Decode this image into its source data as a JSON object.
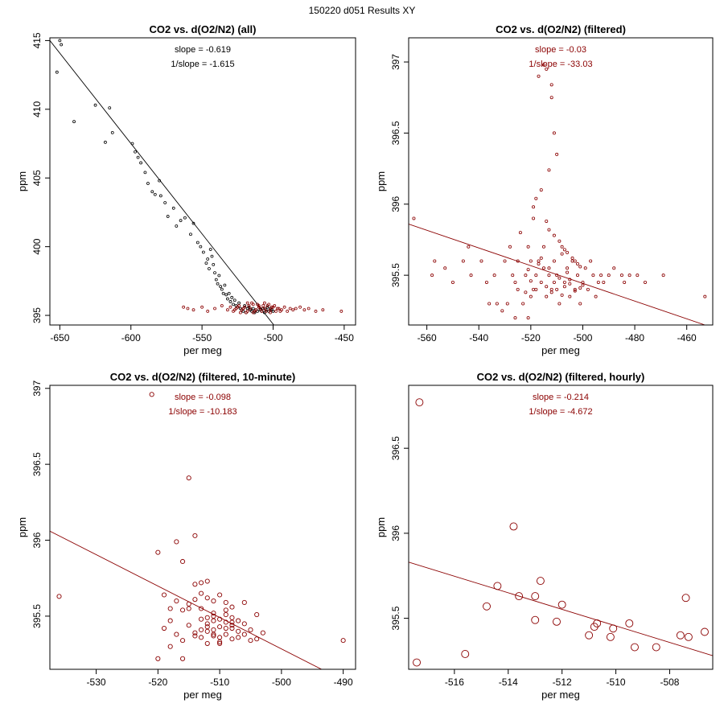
{
  "figure_title": "150220   d051   Results XY",
  "colors": {
    "all": "#000000",
    "filtered": "#8b0000"
  },
  "chart_data": [
    {
      "type": "scatter",
      "title": "CO2 vs. d(O2/N2) (all)",
      "xlabel": "per meg",
      "ylabel": "ppm",
      "xlim": [
        -657,
        -442
      ],
      "ylim": [
        394.3,
        415.2
      ],
      "xticks": [
        -650,
        -600,
        -550,
        -500,
        -450
      ],
      "yticks": [
        395,
        400,
        405,
        410,
        415
      ],
      "annotations": [
        "slope = -0.619",
        "1/slope = -1.615"
      ],
      "annotation_color": "#000000",
      "marker_size": 1.5,
      "fit_line": {
        "x": [
          -657,
          -499.5
        ],
        "y": [
          415.0,
          394.3
        ],
        "color": "#000000"
      },
      "series": [
        {
          "name": "all",
          "color": "#000000",
          "x": [
            -650,
            -649,
            -652,
            -640,
            -625,
            -618,
            -615,
            -613,
            -599,
            -597,
            -595,
            -593,
            -590,
            -588,
            -585,
            -583,
            -580,
            -579,
            -576,
            -574,
            -570,
            -568,
            -565,
            -562,
            -558,
            -556,
            -553,
            -551,
            -549,
            -547,
            -546,
            -545,
            -544,
            -543,
            -542,
            -541,
            -540,
            -539,
            -538,
            -537,
            -536,
            -535,
            -534,
            -533,
            -532,
            -531,
            -530,
            -529,
            -528,
            -527,
            -526,
            -525,
            -524,
            -523,
            -522,
            -521,
            -520,
            -519,
            -518,
            -517,
            -516,
            -515,
            -514,
            -513,
            -512,
            -511,
            -510,
            -509,
            -508,
            -507,
            -506,
            -505,
            -504,
            -503,
            -502,
            -501,
            -500
          ],
          "y": [
            415.0,
            414.7,
            412.7,
            409.1,
            410.3,
            407.6,
            410.1,
            408.3,
            407.5,
            406.9,
            406.5,
            406.1,
            405.4,
            404.6,
            404.0,
            403.8,
            404.8,
            403.7,
            403.2,
            402.2,
            402.8,
            401.5,
            401.9,
            402.1,
            400.9,
            401.7,
            400.3,
            400.0,
            399.6,
            398.8,
            399.1,
            398.4,
            399.8,
            399.3,
            398.7,
            398.1,
            397.6,
            397.3,
            397.9,
            397.1,
            396.9,
            396.6,
            397.2,
            396.5,
            396.2,
            396.6,
            396.0,
            396.3,
            395.8,
            396.1,
            395.7,
            395.6,
            395.9,
            395.5,
            395.4,
            395.3,
            395.7,
            395.2,
            395.5,
            395.6,
            395.4,
            395.3,
            395.5,
            395.2,
            395.4,
            395.3,
            395.6,
            395.4,
            395.3,
            395.5,
            395.2,
            395.4,
            395.6,
            395.3,
            395.5,
            395.4,
            395.3
          ]
        },
        {
          "name": "filtered",
          "color": "#8b0000",
          "x": [
            -563,
            -560,
            -556,
            -550,
            -546,
            -541,
            -536,
            -532,
            -530,
            -528,
            -526,
            -524,
            -522,
            -520,
            -518,
            -516,
            -514,
            -512,
            -510,
            -508,
            -506,
            -504,
            -502,
            -500,
            -498,
            -496,
            -494,
            -492,
            -490,
            -488,
            -486,
            -484,
            -481,
            -478,
            -475,
            -470,
            -465,
            -452,
            -519,
            -517,
            -515,
            -513,
            -511,
            -509,
            -507,
            -505,
            -503,
            -501,
            -521,
            -523,
            -525,
            -527,
            -518,
            -514,
            -510,
            -506,
            -502,
            -499,
            -497,
            -495
          ],
          "y": [
            395.6,
            395.5,
            395.4,
            395.6,
            395.3,
            395.5,
            395.7,
            395.4,
            395.6,
            395.3,
            395.5,
            395.7,
            395.4,
            395.6,
            395.3,
            395.5,
            395.8,
            395.4,
            395.6,
            395.3,
            395.5,
            395.7,
            395.4,
            395.6,
            395.3,
            395.5,
            395.4,
            395.6,
            395.3,
            395.5,
            395.4,
            395.5,
            395.6,
            395.4,
            395.5,
            395.3,
            395.4,
            395.3,
            395.2,
            395.7,
            395.9,
            395.3,
            395.8,
            395.5,
            395.7,
            395.3,
            395.8,
            395.6,
            395.5,
            395.2,
            395.6,
            395.4,
            395.9,
            395.2,
            395.7,
            395.9,
            395.2,
            395.7,
            395.5,
            395.3
          ]
        }
      ]
    },
    {
      "type": "scatter",
      "title": "CO2 vs. d(O2/N2) (filtered)",
      "xlabel": "per meg",
      "ylabel": "ppm",
      "xlim": [
        -567,
        -450
      ],
      "ylim": [
        395.15,
        397.17
      ],
      "xticks": [
        -560,
        -540,
        -520,
        -500,
        -480,
        -460
      ],
      "yticks": [
        395.5,
        396.0,
        396.5,
        397.0
      ],
      "annotations": [
        "slope = -0.03",
        "1/slope = -33.03"
      ],
      "annotation_color": "#8b0000",
      "marker_size": 1.6,
      "fit_line": {
        "x": [
          -567,
          -453
        ],
        "y": [
          395.86,
          395.15
        ],
        "color": "#8b0000"
      },
      "series": [
        {
          "name": "filtered",
          "color": "#8b0000",
          "x": [
            -565,
            -558,
            -557,
            -553,
            -550,
            -546,
            -544,
            -543,
            -539,
            -537,
            -536,
            -534,
            -533,
            -531,
            -530,
            -529,
            -528,
            -527,
            -526,
            -526,
            -525,
            -525,
            -524,
            -523,
            -522,
            -521,
            -521,
            -520,
            -520,
            -519,
            -518,
            -517,
            -516,
            -515,
            -514,
            -513,
            -512,
            -511,
            -510,
            -509,
            -508,
            -507,
            -506,
            -505,
            -504,
            -503,
            -502,
            -501,
            -500,
            -499,
            -498,
            -497,
            -496,
            -495,
            -494,
            -493,
            -492,
            -490,
            -488,
            -485,
            -484,
            -482,
            -479,
            -476,
            -469,
            -453,
            -517,
            -515,
            -514,
            -512,
            -512,
            -511,
            -510,
            -513,
            -516,
            -518,
            -519,
            -514,
            -513,
            -511,
            -509,
            -508,
            -507,
            -506,
            -504,
            -503,
            -502,
            -501,
            -511,
            -512,
            -513,
            -514,
            -515,
            -510,
            -509,
            -508,
            -506,
            -505,
            -516,
            -517,
            -518,
            -519,
            -520,
            -521,
            -522,
            -507,
            -505,
            -503,
            -501,
            -500
          ],
          "y": [
            395.9,
            395.5,
            395.6,
            395.55,
            395.45,
            395.6,
            395.7,
            395.5,
            395.6,
            395.45,
            395.3,
            395.5,
            395.3,
            395.25,
            395.6,
            395.3,
            395.7,
            395.5,
            395.2,
            395.45,
            395.6,
            395.4,
            395.8,
            395.3,
            395.5,
            395.7,
            395.2,
            395.6,
            395.35,
            395.9,
            395.4,
            395.6,
            395.45,
            395.7,
            395.35,
            395.55,
            395.4,
            395.6,
            395.5,
            395.3,
            395.65,
            395.45,
            395.55,
            395.35,
            395.6,
            395.4,
            395.5,
            395.3,
            395.45,
            395.55,
            395.4,
            395.6,
            395.5,
            395.35,
            395.45,
            395.5,
            395.45,
            395.5,
            395.55,
            395.5,
            395.45,
            395.5,
            395.5,
            395.45,
            395.5,
            395.35,
            396.9,
            396.98,
            396.95,
            396.84,
            396.75,
            396.5,
            396.35,
            396.24,
            396.1,
            396.04,
            395.98,
            395.88,
            395.82,
            395.78,
            395.74,
            395.7,
            395.68,
            395.66,
            395.62,
            395.6,
            395.58,
            395.56,
            395.45,
            395.38,
            395.5,
            395.42,
            395.55,
            395.4,
            395.48,
            395.36,
            395.52,
            395.44,
            395.62,
            395.58,
            395.5,
            395.4,
            395.46,
            395.54,
            395.38,
            395.42,
            395.47,
            395.39,
            395.41,
            395.43
          ]
        }
      ]
    },
    {
      "type": "scatter",
      "title": "CO2 vs. d(O2/N2) (filtered, 10-minute)",
      "xlabel": "per meg",
      "ylabel": "ppm",
      "xlim": [
        -537.5,
        -488
      ],
      "ylim": [
        395.15,
        397.02
      ],
      "xticks": [
        -530,
        -520,
        -510,
        -500,
        -490
      ],
      "yticks": [
        395.5,
        396.0,
        396.5,
        397.0
      ],
      "annotations": [
        "slope = -0.098",
        "1/slope = -10.183"
      ],
      "annotation_color": "#8b0000",
      "marker_size": 2.6,
      "fit_line": {
        "x": [
          -537.5,
          -493.5
        ],
        "y": [
          396.06,
          395.15
        ],
        "color": "#8b0000"
      },
      "series": [
        {
          "name": "filtered, 10-minute",
          "color": "#8b0000",
          "x": [
            -536,
            -521,
            -520,
            -519,
            -518,
            -518,
            -517,
            -517,
            -516,
            -516,
            -515,
            -515,
            -515,
            -514,
            -514,
            -514,
            -513,
            -513,
            -513,
            -513,
            -512,
            -512,
            -512,
            -512,
            -511,
            -511,
            -511,
            -511,
            -510,
            -510,
            -510,
            -510,
            -509,
            -509,
            -509,
            -509,
            -508,
            -508,
            -508,
            -508,
            -507,
            -507,
            -507,
            -506,
            -506,
            -506,
            -505,
            -505,
            -504,
            -504,
            -503,
            -513,
            -512,
            -511,
            -510,
            -509,
            -508,
            -514,
            -515,
            -516,
            -517,
            -518,
            -519,
            -512,
            -511,
            -510,
            -509,
            -508,
            -490,
            -520,
            -516,
            -514,
            -513,
            -512,
            -511
          ],
          "y": [
            395.63,
            396.96,
            395.92,
            395.64,
            395.55,
            395.3,
            395.38,
            395.99,
            395.54,
            395.22,
            396.41,
            395.55,
            395.44,
            396.03,
            395.61,
            395.37,
            395.65,
            395.48,
            395.36,
            395.72,
            395.62,
            395.45,
            395.32,
            395.73,
            395.52,
            395.38,
            395.41,
            395.6,
            395.48,
            395.36,
            395.32,
            395.64,
            395.46,
            395.42,
            395.38,
            395.51,
            395.49,
            395.35,
            395.44,
            395.56,
            395.47,
            395.4,
            395.36,
            395.45,
            395.38,
            395.59,
            395.41,
            395.34,
            395.51,
            395.35,
            395.39,
            395.55,
            395.4,
            395.37,
            395.43,
            395.59,
            395.46,
            395.39,
            395.58,
            395.34,
            395.6,
            395.47,
            395.42,
            395.49,
            395.47,
            395.33,
            395.54,
            395.42,
            395.34,
            395.22,
            395.86,
            395.71,
            395.41,
            395.43,
            395.5
          ]
        }
      ]
    },
    {
      "type": "scatter",
      "title": "CO2 vs. d(O2/N2) (filtered, hourly)",
      "xlabel": "per meg",
      "ylabel": "ppm",
      "xlim": [
        -517.7,
        -506.4
      ],
      "ylim": [
        395.2,
        396.87
      ],
      "xticks": [
        -516,
        -514,
        -512,
        -510,
        -508
      ],
      "yticks": [
        395.5,
        396.0,
        396.5
      ],
      "annotations": [
        "slope = -0.214",
        "1/slope = -4.672"
      ],
      "annotation_color": "#8b0000",
      "marker_size": 4.5,
      "fit_line": {
        "x": [
          -517.7,
          -506.4
        ],
        "y": [
          395.83,
          395.28
        ],
        "color": "#8b0000"
      },
      "series": [
        {
          "name": "filtered, hourly",
          "color": "#8b0000",
          "x": [
            -517.4,
            -517.3,
            -515.6,
            -514.8,
            -514.4,
            -513.8,
            -513.6,
            -513.0,
            -513.0,
            -512.8,
            -512.2,
            -512.0,
            -511.0,
            -510.8,
            -510.7,
            -510.2,
            -510.1,
            -509.5,
            -509.3,
            -508.5,
            -507.6,
            -507.4,
            -507.3,
            -506.7
          ],
          "y": [
            395.24,
            396.77,
            395.29,
            395.57,
            395.69,
            396.04,
            395.63,
            395.49,
            395.63,
            395.72,
            395.48,
            395.58,
            395.4,
            395.45,
            395.47,
            395.39,
            395.44,
            395.47,
            395.33,
            395.33,
            395.4,
            395.62,
            395.39,
            395.42
          ]
        }
      ]
    }
  ]
}
